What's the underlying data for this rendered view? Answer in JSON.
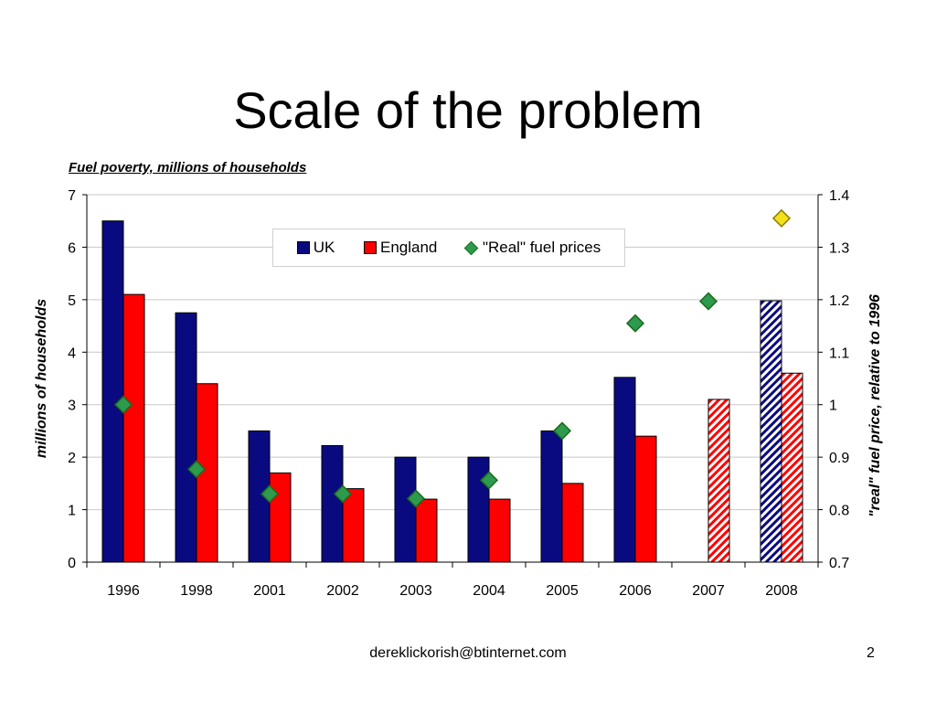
{
  "slide": {
    "title": "Scale of the problem",
    "footer_email": "dereklickorish@btinternet.com",
    "page_number": "2"
  },
  "colors": {
    "uk": "#0a0a80",
    "england": "#ff0000",
    "fuel_price_marker": "#2e9a4e",
    "fuel_price_marker_2008": "#f2e01a",
    "estimate_hatch_uk": "#0a0a80",
    "estimate_hatch_england": "#ff0000"
  },
  "chart_data": {
    "type": "bar",
    "title": "Fuel poverty, millions of households",
    "categories": [
      "1996",
      "1998",
      "2001",
      "2002",
      "2003",
      "2004",
      "2005",
      "2006",
      "2007",
      "2008"
    ],
    "ylabel": "millions of households",
    "y2label": "\"real\" fuel price, relative to 1996",
    "ylim": [
      0,
      7
    ],
    "y2lim": [
      0.7,
      1.4
    ],
    "yticks": [
      "0",
      "1",
      "2",
      "3",
      "4",
      "5",
      "6",
      "7"
    ],
    "y2ticks": [
      "0.7",
      "0.8",
      "0.9",
      "1",
      "1.1",
      "1.2",
      "1.3",
      "1.4"
    ],
    "grid": true,
    "legend_position": "top-center",
    "series": [
      {
        "name": "UK",
        "type": "bar",
        "values": [
          6.5,
          4.75,
          2.5,
          2.22,
          2.0,
          2.0,
          2.5,
          3.52,
          null,
          4.98
        ],
        "estimated": [
          false,
          false,
          false,
          false,
          false,
          false,
          false,
          false,
          false,
          true
        ]
      },
      {
        "name": "England",
        "type": "bar",
        "values": [
          5.1,
          3.4,
          1.7,
          1.4,
          1.2,
          1.2,
          1.5,
          2.4,
          3.1,
          3.6
        ],
        "estimated": [
          false,
          false,
          false,
          false,
          false,
          false,
          false,
          false,
          true,
          true
        ]
      },
      {
        "name": "\"Real\" fuel prices",
        "type": "scatter",
        "axis": "secondary",
        "values": [
          1.0,
          0.877,
          0.83,
          0.83,
          0.821,
          0.856,
          0.95,
          1.155,
          1.197,
          1.355
        ]
      }
    ]
  }
}
